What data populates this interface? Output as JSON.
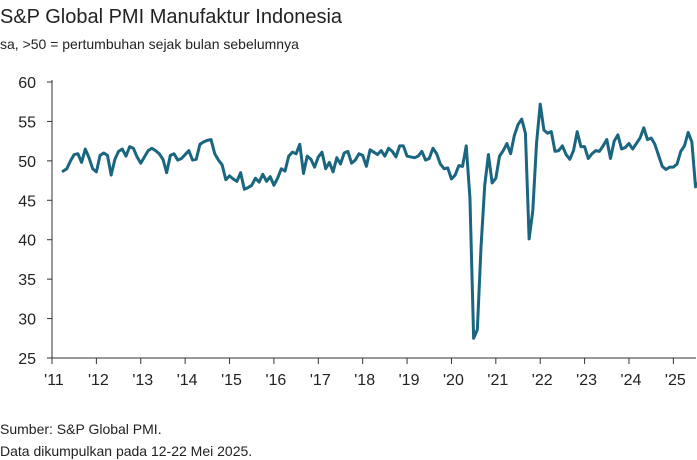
{
  "chart_data": {
    "type": "line",
    "title": "S&P Global PMI Manufaktur Indonesia",
    "subtitle": "sa, >50 = pertumbuhan sejak bulan sebelumnya",
    "xlabel": "",
    "ylabel": "",
    "ylim": [
      25,
      60
    ],
    "yticks": [
      25,
      30,
      35,
      40,
      45,
      50,
      55,
      60
    ],
    "xlim": [
      2011.0,
      2025.42
    ],
    "xticks": [
      {
        "x": 2011,
        "label": "'11"
      },
      {
        "x": 2012,
        "label": "'12"
      },
      {
        "x": 2013,
        "label": "'13"
      },
      {
        "x": 2014,
        "label": "'14"
      },
      {
        "x": 2015,
        "label": "'15"
      },
      {
        "x": 2016,
        "label": "'16"
      },
      {
        "x": 2017,
        "label": "'17"
      },
      {
        "x": 2018,
        "label": "'18"
      },
      {
        "x": 2019,
        "label": "'19"
      },
      {
        "x": 2020,
        "label": "'20"
      },
      {
        "x": 2021,
        "label": "'21"
      },
      {
        "x": 2022,
        "label": "'22"
      },
      {
        "x": 2023,
        "label": "'23"
      },
      {
        "x": 2024,
        "label": "'24"
      },
      {
        "x": 2025,
        "label": "'25"
      }
    ],
    "grid": false,
    "color": "#1a6680",
    "series": [
      {
        "name": "S&P Global PMI Manufaktur Indonesia",
        "start": "2011-04",
        "frequency": "monthly",
        "values": [
          48.7,
          49.0,
          50.0,
          50.8,
          50.9,
          49.8,
          51.5,
          50.4,
          49.0,
          48.6,
          50.7,
          51.0,
          50.7,
          48.2,
          50.2,
          51.2,
          51.5,
          50.6,
          51.8,
          51.6,
          50.5,
          49.7,
          50.5,
          51.3,
          51.6,
          51.3,
          50.9,
          50.2,
          48.5,
          50.7,
          50.9,
          50.1,
          50.3,
          50.8,
          51.3,
          50.1,
          50.2,
          52.1,
          52.4,
          52.6,
          52.7,
          50.9,
          50.1,
          49.5,
          47.6,
          48.1,
          47.7,
          47.4,
          48.5,
          46.4,
          46.6,
          46.9,
          47.8,
          47.3,
          48.3,
          47.4,
          48.0,
          46.9,
          47.8,
          49.0,
          48.7,
          50.6,
          51.1,
          50.9,
          52.1,
          48.4,
          50.6,
          50.2,
          49.2,
          50.5,
          51.1,
          49.0,
          49.8,
          48.6,
          50.4,
          49.6,
          51.0,
          51.2,
          49.7,
          50.1,
          50.9,
          50.7,
          49.3,
          51.4,
          51.1,
          50.8,
          51.3,
          50.6,
          51.6,
          51.2,
          50.5,
          51.9,
          51.9,
          50.6,
          50.5,
          50.4,
          50.6,
          51.2,
          50.1,
          50.3,
          51.6,
          50.9,
          49.6,
          49.0,
          49.1,
          47.7,
          48.2,
          49.4,
          49.3,
          51.9,
          45.3,
          27.5,
          28.6,
          39.1,
          46.9,
          50.8,
          47.2,
          47.8,
          50.6,
          51.3,
          52.2,
          50.9,
          53.2,
          54.6,
          55.3,
          53.5,
          40.1,
          43.7,
          52.2,
          57.2,
          53.9,
          53.5,
          53.7,
          51.2,
          51.3,
          51.9,
          50.8,
          50.2,
          51.3,
          53.7,
          51.8,
          51.8,
          50.3,
          50.9,
          51.3,
          51.2,
          51.9,
          52.7,
          50.3,
          52.5,
          53.3,
          51.5,
          51.7,
          52.2,
          51.5,
          52.2,
          52.9,
          54.2,
          52.7,
          52.9,
          52.1,
          50.7,
          49.3,
          48.9,
          49.2,
          49.2,
          49.6,
          51.2,
          51.9,
          53.6,
          52.4,
          46.7,
          47.4
        ]
      }
    ]
  },
  "footer": {
    "source": "Sumber: S&P Global PMI.",
    "note": "Data dikumpulkan pada 12-22 Mei 2025."
  }
}
